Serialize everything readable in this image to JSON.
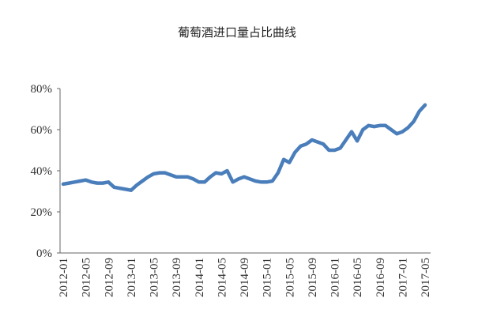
{
  "chart_data": {
    "type": "line",
    "title": "葡萄酒进口量占比曲线",
    "categories": [
      "2012-01",
      null,
      null,
      null,
      "2012-05",
      null,
      null,
      null,
      "2012-09",
      null,
      null,
      null,
      "2013-01",
      null,
      null,
      null,
      "2013-05",
      null,
      null,
      null,
      "2013-09",
      null,
      null,
      null,
      "2014-01",
      null,
      null,
      null,
      "2014-05",
      null,
      null,
      null,
      "2014-09",
      null,
      null,
      null,
      "2015-01",
      null,
      null,
      null,
      "2015-05",
      null,
      null,
      null,
      "2015-09",
      null,
      null,
      null,
      "2016-01",
      null,
      null,
      null,
      "2016-05",
      null,
      null,
      null,
      "2016-09",
      null,
      null,
      null,
      "2017-01",
      null,
      null,
      null,
      "2017-05"
    ],
    "series": [
      {
        "color": "#4a7ebb",
        "values": [
          33.5,
          34,
          34.5,
          35,
          35.5,
          34.5,
          34,
          34,
          34.5,
          32,
          31.5,
          31,
          30.5,
          33,
          35,
          37,
          38.5,
          39,
          39,
          38,
          37,
          37,
          37,
          36,
          34.5,
          34.5,
          37,
          39,
          38.5,
          40,
          34.5,
          36,
          37,
          36,
          35,
          34.5,
          34.5,
          35,
          39,
          45.5,
          44,
          49,
          52,
          53,
          55,
          54,
          53,
          50,
          50,
          51,
          55,
          59,
          54.5,
          60,
          62,
          61.5,
          62,
          62,
          60,
          58,
          59,
          61,
          64,
          69,
          72
        ]
      }
    ],
    "ylim": [
      0,
      80
    ],
    "yticks": [
      {
        "value": 0,
        "label": "0%"
      },
      {
        "value": 20,
        "label": "20%"
      },
      {
        "value": 40,
        "label": "40%"
      },
      {
        "value": 60,
        "label": "60%"
      },
      {
        "value": 80,
        "label": "80%"
      }
    ]
  }
}
